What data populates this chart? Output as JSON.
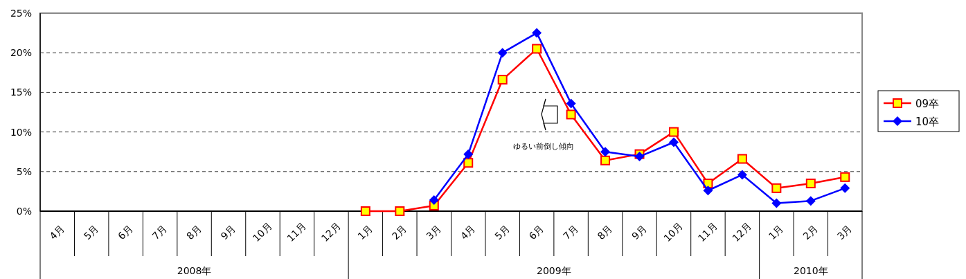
{
  "chart_data": {
    "type": "line",
    "categories": [
      "4月",
      "5月",
      "6月",
      "7月",
      "8月",
      "9月",
      "10月",
      "11月",
      "12月",
      "1月",
      "2月",
      "3月",
      "4月",
      "5月",
      "6月",
      "7月",
      "8月",
      "9月",
      "10月",
      "11月",
      "12月",
      "1月",
      "2月",
      "3月"
    ],
    "series": [
      {
        "name": "09卒",
        "color": "#ff0000",
        "marker": "square",
        "values": [
          null,
          null,
          null,
          null,
          null,
          null,
          null,
          null,
          null,
          0,
          0,
          0.7,
          6.1,
          16.6,
          20.5,
          12.2,
          6.4,
          7.2,
          10.0,
          3.5,
          6.6,
          2.9,
          3.5,
          4.3
        ]
      },
      {
        "name": "10卒",
        "color": "#0000ff",
        "marker": "diamond",
        "values": [
          null,
          null,
          null,
          null,
          null,
          null,
          null,
          null,
          null,
          null,
          null,
          1.4,
          7.2,
          20.0,
          22.5,
          13.6,
          7.5,
          6.9,
          8.7,
          2.6,
          4.6,
          1.0,
          1.3,
          2.9
        ]
      }
    ],
    "ylim": [
      0,
      25
    ],
    "yticks": [
      {
        "value": 0,
        "label": "0%"
      },
      {
        "value": 5,
        "label": "5%"
      },
      {
        "value": 10,
        "label": "10%"
      },
      {
        "value": 15,
        "label": "15%"
      },
      {
        "value": 20,
        "label": "20%"
      },
      {
        "value": 25,
        "label": "25%"
      }
    ],
    "grid": "y",
    "line_style": "solid",
    "legend": "right",
    "annotations": [
      "ゆるい前倒し傾向",
      "2008年",
      "2009年",
      "2010年"
    ]
  }
}
